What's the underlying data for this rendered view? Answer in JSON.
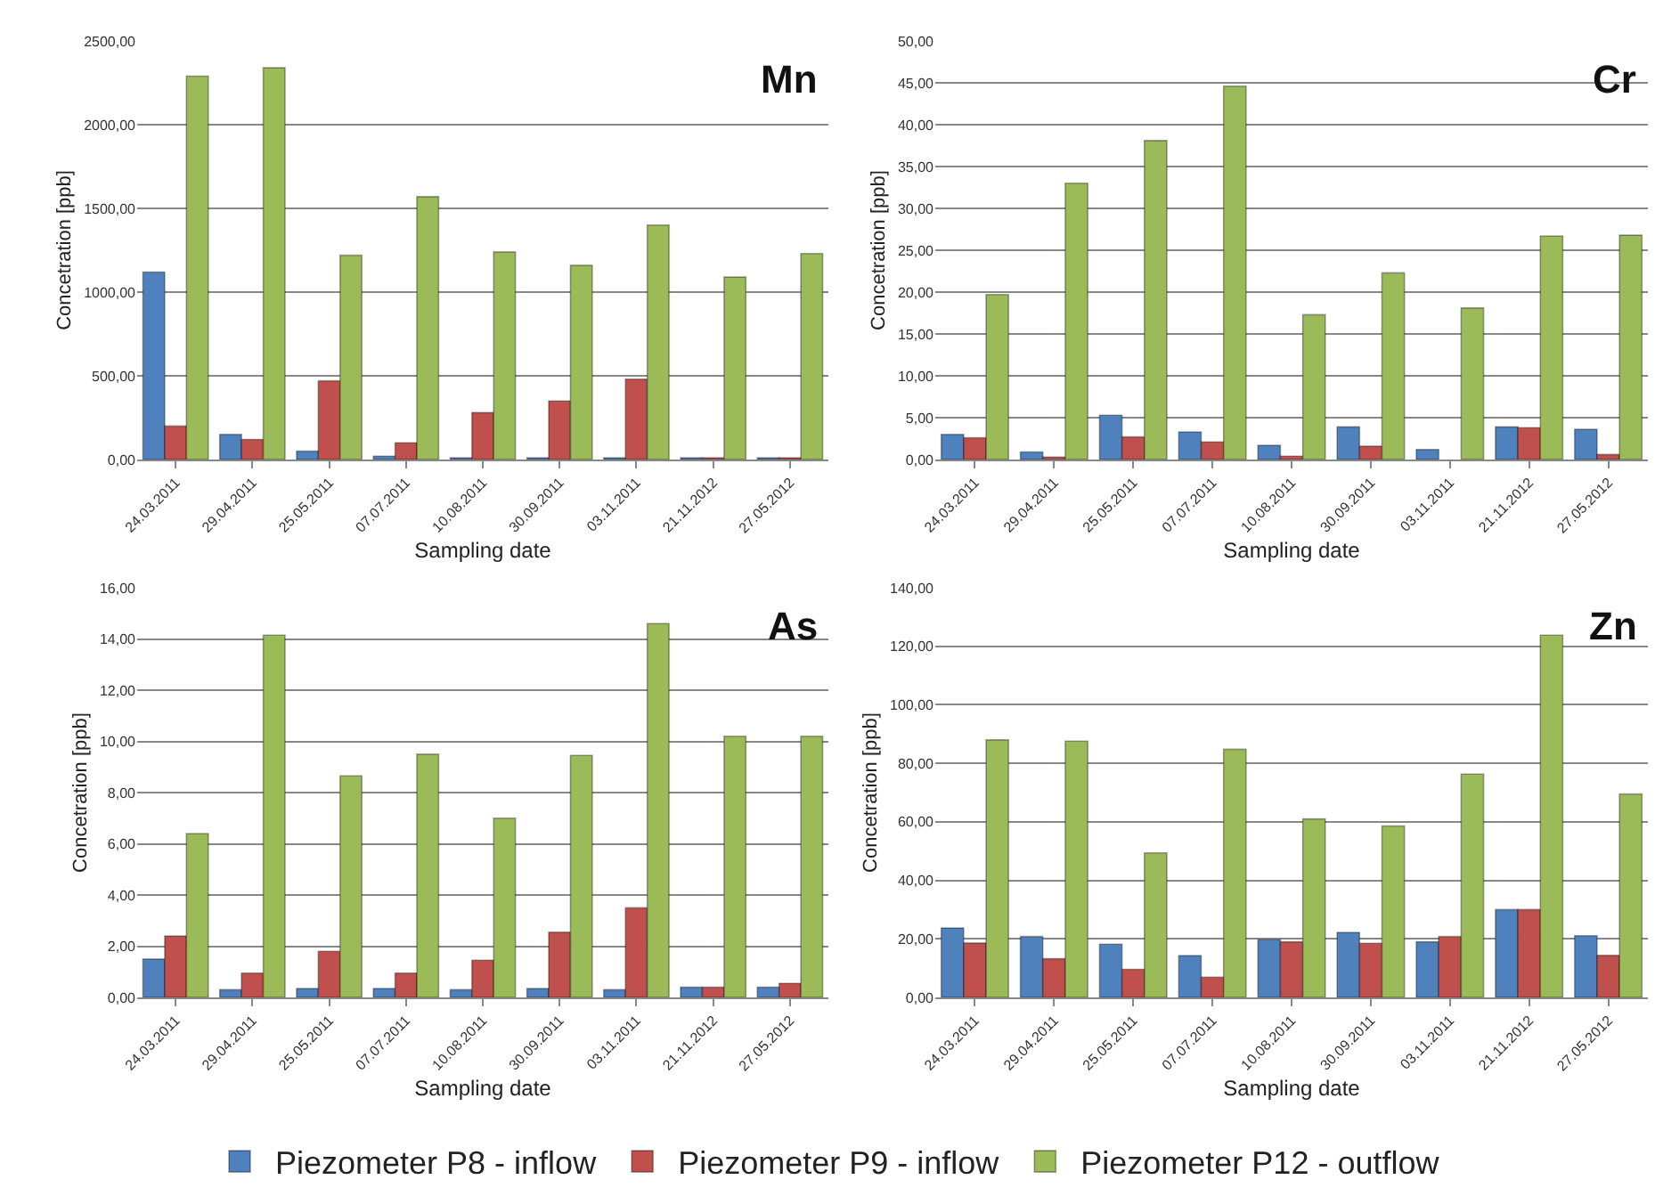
{
  "chart_data": [
    {
      "type": "bar",
      "title": "Mn",
      "xlabel": "Sampling date",
      "ylabel": "Concetration [ppb]",
      "grid": "y",
      "legend": "bottom",
      "categories": [
        "24.03.2011",
        "29.04.2011",
        "25.05.2011",
        "07.07.2011",
        "10.08.2011",
        "30.09.2011",
        "03.11.2011",
        "21.11.2012",
        "27.05.2012"
      ],
      "ylim": [
        0,
        2500
      ],
      "yticks": [
        {
          "value": 0,
          "label": "0,00"
        },
        {
          "value": 500,
          "label": "500,00"
        },
        {
          "value": 1000,
          "label": "1000,00"
        },
        {
          "value": 1500,
          "label": "1500,00"
        },
        {
          "value": 2000,
          "label": "2000,00"
        },
        {
          "value": 2500,
          "label": "2500,00"
        }
      ],
      "series": [
        {
          "name": "Piezometer P8 - inflow",
          "color": "#4f81bd",
          "values": [
            1120,
            150,
            50,
            20,
            10,
            10,
            10,
            10,
            10
          ]
        },
        {
          "name": "Piezometer P9 - inflow",
          "color": "#c0504d",
          "values": [
            200,
            120,
            470,
            100,
            280,
            350,
            480,
            10,
            10
          ]
        },
        {
          "name": "Piezometer P12 - outflow",
          "color": "#9bbb59",
          "values": [
            2290,
            2340,
            1220,
            1570,
            1240,
            1160,
            1400,
            1090,
            1230
          ]
        }
      ]
    },
    {
      "type": "bar",
      "title": "Cr",
      "xlabel": "Sampling date",
      "ylabel": "Concetration [ppb]",
      "grid": "y",
      "categories": [
        "24.03.2011",
        "29.04.2011",
        "25.05.2011",
        "07.07.2011",
        "10.08.2011",
        "30.09.2011",
        "03.11.2011",
        "21.11.2012",
        "27.05.2012"
      ],
      "ylim": [
        0,
        50
      ],
      "yticks": [
        {
          "value": 0,
          "label": "0,00"
        },
        {
          "value": 5,
          "label": "5,00"
        },
        {
          "value": 10,
          "label": "10,00"
        },
        {
          "value": 15,
          "label": "15,00"
        },
        {
          "value": 20,
          "label": "20,00"
        },
        {
          "value": 25,
          "label": "25,00"
        },
        {
          "value": 30,
          "label": "30,00"
        },
        {
          "value": 35,
          "label": "35,00"
        },
        {
          "value": 40,
          "label": "40,00"
        },
        {
          "value": 45,
          "label": "45,00"
        },
        {
          "value": 50,
          "label": "50,00"
        }
      ],
      "series": [
        {
          "color": "#4f81bd",
          "values": [
            3.0,
            0.9,
            5.3,
            3.3,
            1.7,
            3.9,
            1.2,
            3.9,
            3.6
          ]
        },
        {
          "color": "#c0504d",
          "values": [
            2.6,
            0.3,
            2.7,
            2.1,
            0.4,
            1.6,
            null,
            3.8,
            0.6
          ]
        },
        {
          "color": "#9bbb59",
          "values": [
            19.7,
            33.0,
            38.1,
            44.6,
            17.3,
            22.3,
            18.1,
            26.7,
            26.8
          ]
        }
      ]
    },
    {
      "type": "bar",
      "title": "As",
      "xlabel": "Sampling date",
      "ylabel": "Concetration [ppb]",
      "grid": "y",
      "categories": [
        "24.03.2011",
        "29.04.2011",
        "25.05.2011",
        "07.07.2011",
        "10.08.2011",
        "30.09.2011",
        "03.11.2011",
        "21.11.2012",
        "27.05.2012"
      ],
      "ylim": [
        0,
        16
      ],
      "yticks": [
        {
          "value": 0,
          "label": "0,00"
        },
        {
          "value": 2,
          "label": "2,00"
        },
        {
          "value": 4,
          "label": "4,00"
        },
        {
          "value": 6,
          "label": "6,00"
        },
        {
          "value": 8,
          "label": "8,00"
        },
        {
          "value": 10,
          "label": "10,00"
        },
        {
          "value": 12,
          "label": "12,00"
        },
        {
          "value": 14,
          "label": "14,00"
        },
        {
          "value": 16,
          "label": "16,00"
        }
      ],
      "series": [
        {
          "color": "#4f81bd",
          "values": [
            1.5,
            0.3,
            0.35,
            0.35,
            0.3,
            0.35,
            0.3,
            0.4,
            0.4
          ]
        },
        {
          "color": "#c0504d",
          "values": [
            2.4,
            0.95,
            1.8,
            0.95,
            1.45,
            2.55,
            3.5,
            0.4,
            0.55
          ]
        },
        {
          "color": "#9bbb59",
          "values": [
            6.4,
            14.15,
            8.65,
            9.5,
            7.0,
            9.45,
            14.6,
            10.2,
            10.2
          ]
        }
      ]
    },
    {
      "type": "bar",
      "title": "Zn",
      "xlabel": "Sampling date",
      "ylabel": "Concetration [ppb]",
      "grid": "y",
      "categories": [
        "24.03.2011",
        "29.04.2011",
        "25.05.2011",
        "07.07.2011",
        "10.08.2011",
        "30.09.2011",
        "03.11.2011",
        "21.11.2012",
        "27.05.2012"
      ],
      "ylim": [
        0,
        140
      ],
      "yticks": [
        {
          "value": 0,
          "label": "0,00"
        },
        {
          "value": 20,
          "label": "20,00"
        },
        {
          "value": 40,
          "label": "40,00"
        },
        {
          "value": 60,
          "label": "60,00"
        },
        {
          "value": 80,
          "label": "80,00"
        },
        {
          "value": 100,
          "label": "100,00"
        },
        {
          "value": 120,
          "label": "120,00"
        },
        {
          "value": 140,
          "label": "140,00"
        }
      ],
      "series": [
        {
          "color": "#4f81bd",
          "values": [
            23.7,
            20.8,
            18.2,
            14.3,
            19.7,
            22.2,
            19.0,
            30.0,
            21.1
          ]
        },
        {
          "color": "#c0504d",
          "values": [
            18.6,
            13.2,
            9.6,
            6.9,
            19.0,
            18.5,
            20.8,
            30.0,
            14.4
          ]
        },
        {
          "color": "#9bbb59",
          "values": [
            88.0,
            87.6,
            49.4,
            84.8,
            61.0,
            58.6,
            76.3,
            123.8,
            69.5
          ]
        }
      ]
    }
  ]
}
